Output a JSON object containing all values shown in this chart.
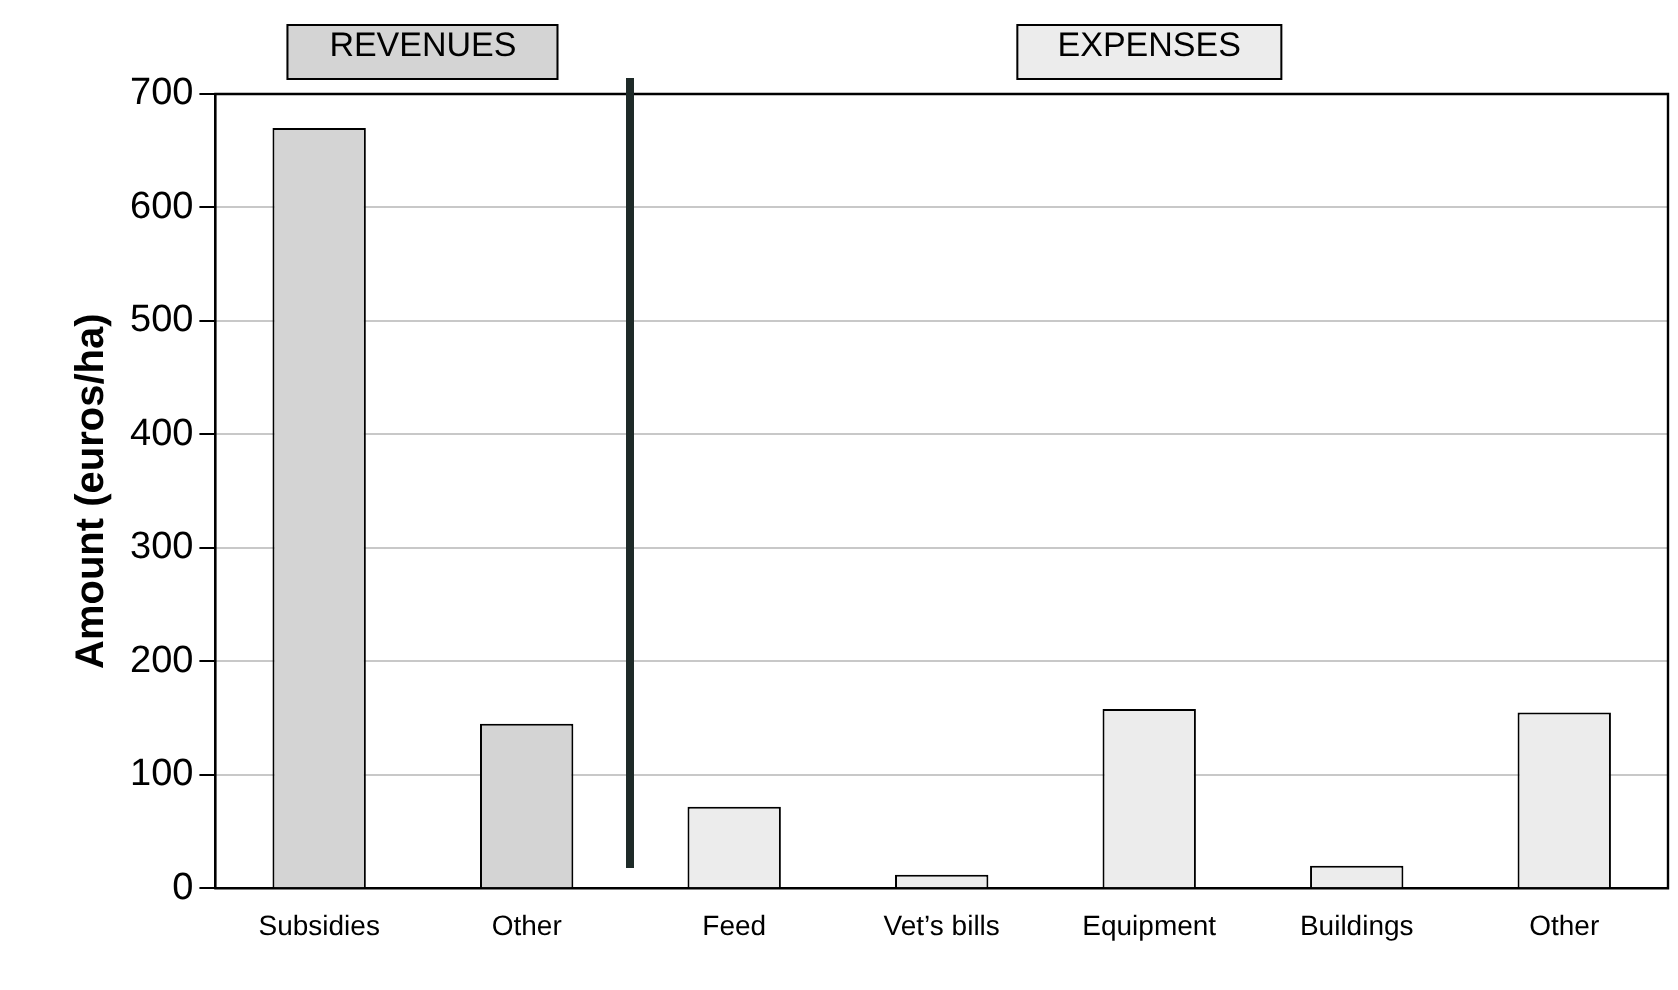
{
  "chart_data": {
    "type": "bar",
    "ylabel": "Amount (euros/ha)",
    "categories": [
      "Subsidies",
      "Other",
      "Feed",
      "Vet’s bills",
      "Equipment",
      "Buildings",
      "Other"
    ],
    "series": [
      {
        "name": "REVENUES",
        "color": "#d4d4d4",
        "values": [
          670,
          145,
          null,
          null,
          null,
          null,
          null
        ]
      },
      {
        "name": "EXPENSES",
        "color": "#ececec",
        "values": [
          null,
          null,
          72,
          12,
          158,
          20,
          155
        ]
      }
    ],
    "ylim": [
      0,
      700
    ],
    "yticks": [
      0,
      100,
      200,
      300,
      400,
      500,
      600,
      700
    ],
    "grid": "y"
  }
}
